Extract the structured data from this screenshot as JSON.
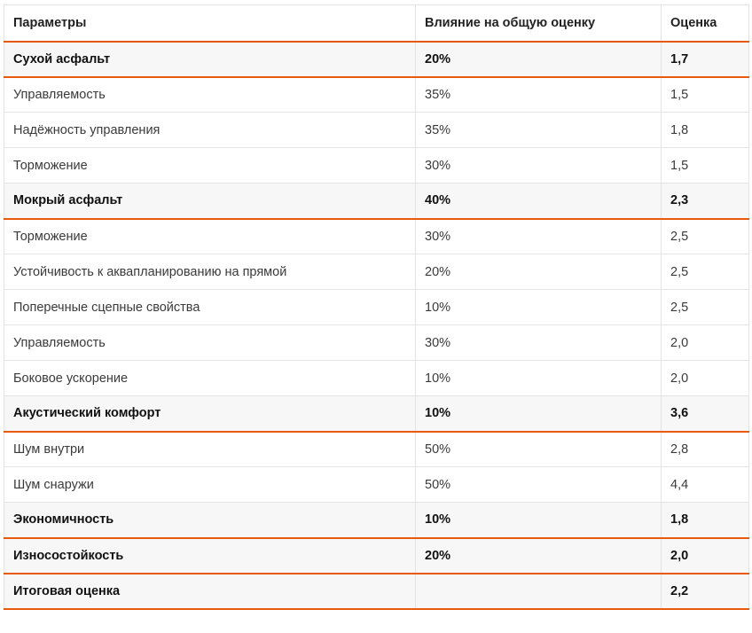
{
  "table": {
    "headers": [
      "Параметры",
      "Влияние на общую оценку",
      "Оценка"
    ],
    "rows": [
      {
        "type": "section",
        "param": "Сухой асфальт",
        "weight": "20%",
        "score": "1,7"
      },
      {
        "type": "item",
        "param": "Управляемость",
        "weight": "35%",
        "score": "1,5"
      },
      {
        "type": "item",
        "param": "Надёжность управления",
        "weight": "35%",
        "score": "1,8"
      },
      {
        "type": "item",
        "param": "Торможение",
        "weight": "30%",
        "score": "1,5"
      },
      {
        "type": "section",
        "param": "Мокрый асфальт",
        "weight": "40%",
        "score": "2,3"
      },
      {
        "type": "item",
        "param": "Торможение",
        "weight": "30%",
        "score": "2,5"
      },
      {
        "type": "item",
        "param": "Устойчивость к аквапланированию на прямой",
        "weight": "20%",
        "score": "2,5"
      },
      {
        "type": "item",
        "param": "Поперечные сцепные свойства",
        "weight": "10%",
        "score": "2,5"
      },
      {
        "type": "item",
        "param": "Управляемость",
        "weight": "30%",
        "score": "2,0"
      },
      {
        "type": "item",
        "param": "Боковое ускорение",
        "weight": "10%",
        "score": "2,0"
      },
      {
        "type": "section",
        "param": "Акустический комфорт",
        "weight": "10%",
        "score": "3,6"
      },
      {
        "type": "item",
        "param": "Шум внутри",
        "weight": "50%",
        "score": "2,8"
      },
      {
        "type": "item",
        "param": "Шум снаружи",
        "weight": "50%",
        "score": "4,4"
      },
      {
        "type": "section",
        "param": "Экономичность",
        "weight": "10%",
        "score": "1,8"
      },
      {
        "type": "section",
        "param": "Износостойкость",
        "weight": "20%",
        "score": "2,0"
      },
      {
        "type": "total",
        "param": "Итоговая оценка",
        "weight": "",
        "score": "2,2"
      }
    ]
  },
  "colors": {
    "accent": "#e8590c",
    "section_bg": "#f7f7f7"
  }
}
